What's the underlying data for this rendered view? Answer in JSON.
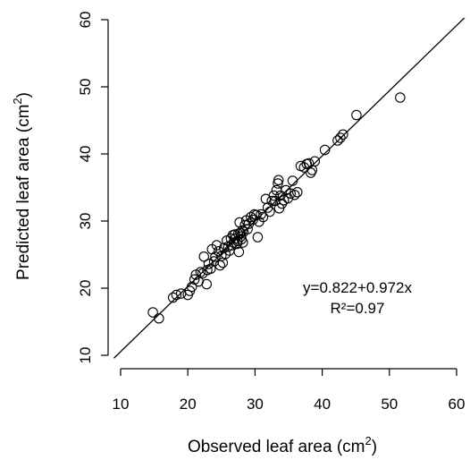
{
  "chart_data": {
    "type": "scatter",
    "title": "",
    "xlabel": "Observed leaf area (cm",
    "xlabel_sup": "2",
    "xlabel_close": ")",
    "ylabel": "Predicted leaf area (cm",
    "ylabel_sup": "2",
    "ylabel_close": ")",
    "xlim": [
      10,
      60
    ],
    "ylim": [
      10,
      60
    ],
    "x_ticks": [
      10,
      20,
      30,
      40,
      50,
      60
    ],
    "y_ticks": [
      10,
      20,
      30,
      40,
      50,
      60
    ],
    "grid": false,
    "box": "left-bottom-open",
    "fit_line": {
      "intercept": 0.822,
      "slope": 0.972
    },
    "annotations": {
      "equation": "y=0.822+0.972x",
      "r2": "R²=0.97"
    },
    "points": [
      [
        14.8,
        16.4
      ],
      [
        15.7,
        15.5
      ],
      [
        17.8,
        18.6
      ],
      [
        18.3,
        19.0
      ],
      [
        19.0,
        19.2
      ],
      [
        20.0,
        19.0
      ],
      [
        20.3,
        19.6
      ],
      [
        20.6,
        20.2
      ],
      [
        21.0,
        21.3
      ],
      [
        21.2,
        22.0
      ],
      [
        21.6,
        21.0
      ],
      [
        21.9,
        22.4
      ],
      [
        22.2,
        22.2
      ],
      [
        22.4,
        24.7
      ],
      [
        22.8,
        20.6
      ],
      [
        22.9,
        22.7
      ],
      [
        23.1,
        23.6
      ],
      [
        23.4,
        22.9
      ],
      [
        23.6,
        25.8
      ],
      [
        23.9,
        24.0
      ],
      [
        24.1,
        24.7
      ],
      [
        24.3,
        26.4
      ],
      [
        24.6,
        25.5
      ],
      [
        24.8,
        23.4
      ],
      [
        25.0,
        24.8
      ],
      [
        25.2,
        23.8
      ],
      [
        25.4,
        26.0
      ],
      [
        25.6,
        25.1
      ],
      [
        25.8,
        27.1
      ],
      [
        26.0,
        26.2
      ],
      [
        26.2,
        25.6
      ],
      [
        26.4,
        27.4
      ],
      [
        26.5,
        26.4
      ],
      [
        26.7,
        27.9
      ],
      [
        26.8,
        26.8
      ],
      [
        27.0,
        28.0
      ],
      [
        27.1,
        27.4
      ],
      [
        27.3,
        26.6
      ],
      [
        27.4,
        27.0
      ],
      [
        27.5,
        28.1
      ],
      [
        27.6,
        25.4
      ],
      [
        27.7,
        29.8
      ],
      [
        27.8,
        28.2
      ],
      [
        27.9,
        27.7
      ],
      [
        28.0,
        27.3
      ],
      [
        28.1,
        28.6
      ],
      [
        28.2,
        26.8
      ],
      [
        28.3,
        28.4
      ],
      [
        28.5,
        29.4
      ],
      [
        28.7,
        30.1
      ],
      [
        28.9,
        28.8
      ],
      [
        29.1,
        29.6
      ],
      [
        29.4,
        30.6
      ],
      [
        29.7,
        30.2
      ],
      [
        29.9,
        31.0
      ],
      [
        30.2,
        30.9
      ],
      [
        30.4,
        27.6
      ],
      [
        30.6,
        29.9
      ],
      [
        30.9,
        31.0
      ],
      [
        31.2,
        30.6
      ],
      [
        31.6,
        33.3
      ],
      [
        31.9,
        32.0
      ],
      [
        32.2,
        31.4
      ],
      [
        32.5,
        33.0
      ],
      [
        32.8,
        33.8
      ],
      [
        33.0,
        33.0
      ],
      [
        33.2,
        34.6
      ],
      [
        33.4,
        35.6
      ],
      [
        33.5,
        36.1
      ],
      [
        33.6,
        31.9
      ],
      [
        33.8,
        33.8
      ],
      [
        34.0,
        32.6
      ],
      [
        34.3,
        33.1
      ],
      [
        34.6,
        34.6
      ],
      [
        34.9,
        33.4
      ],
      [
        35.3,
        34.1
      ],
      [
        35.6,
        36.0
      ],
      [
        35.9,
        33.9
      ],
      [
        36.3,
        34.3
      ],
      [
        36.8,
        38.2
      ],
      [
        37.3,
        38.0
      ],
      [
        37.7,
        38.5
      ],
      [
        38.0,
        38.6
      ],
      [
        38.3,
        37.2
      ],
      [
        38.5,
        37.6
      ],
      [
        38.9,
        38.9
      ],
      [
        40.4,
        40.6
      ],
      [
        42.3,
        42.0
      ],
      [
        42.7,
        42.4
      ],
      [
        43.1,
        42.9
      ],
      [
        45.1,
        45.8
      ],
      [
        51.6,
        48.4
      ]
    ]
  }
}
